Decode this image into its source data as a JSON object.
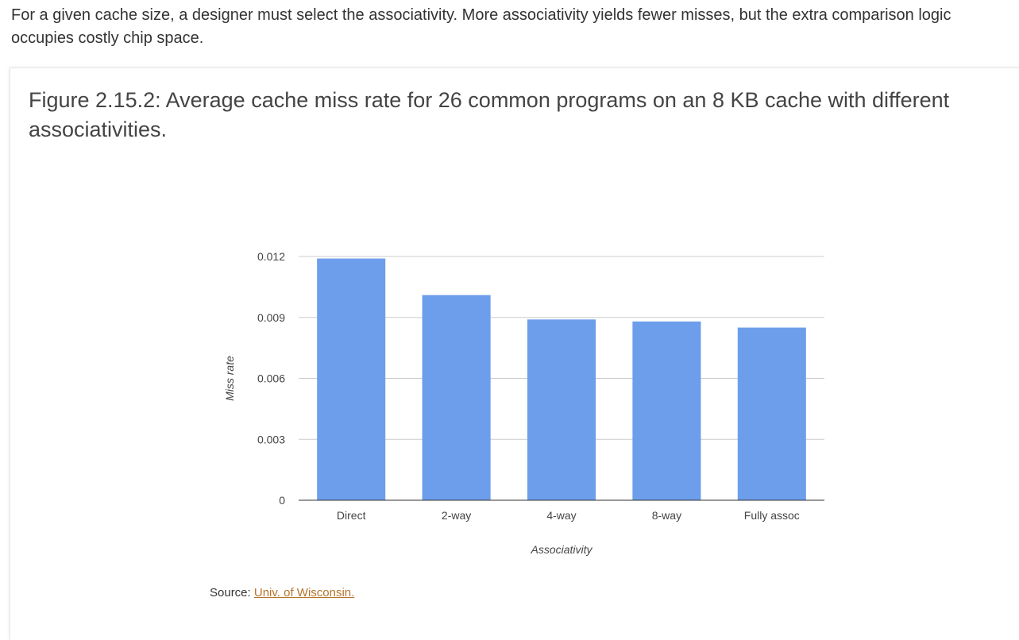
{
  "intro_text": "For a given cache size, a designer must select the associativity. More associativity yields fewer misses, but the extra comparison logic occupies costly chip space.",
  "figure": {
    "title": "Figure 2.15.2: Average cache miss rate for 26 common programs on an 8 KB cache with different associativities."
  },
  "source": {
    "label": "Source: ",
    "link_text": "Univ. of Wisconsin."
  },
  "chart_data": {
    "type": "bar",
    "categories": [
      "Direct",
      "2-way",
      "4-way",
      "8-way",
      "Fully assoc"
    ],
    "values": [
      0.0119,
      0.0101,
      0.0089,
      0.0088,
      0.0085
    ],
    "xlabel": "Associativity",
    "ylabel": "Miss rate",
    "yticks": [
      "0",
      "0.003",
      "0.006",
      "0.009",
      "0.012"
    ],
    "ylim": [
      0,
      0.012
    ],
    "grid": true,
    "bar_color": "#6d9eeb"
  }
}
